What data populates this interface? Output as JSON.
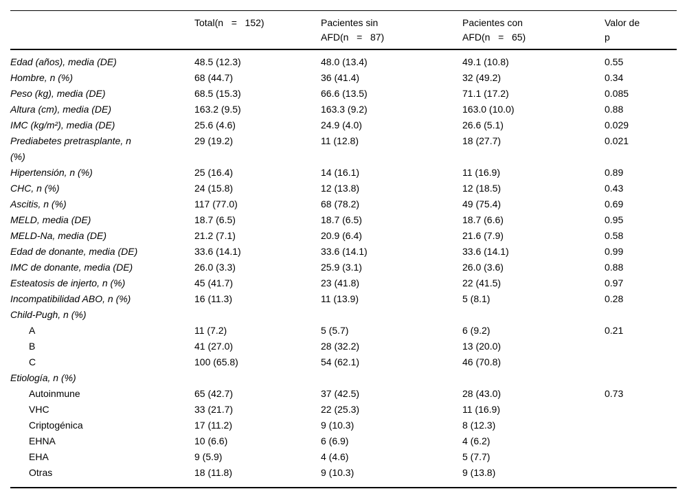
{
  "table": {
    "columns": [
      {
        "label": ""
      },
      {
        "label": "Total(n   =   152)"
      },
      {
        "label": "Pacientes sin\nAFD(n   =   87)"
      },
      {
        "label": "Pacientes con\nAFD(n   =   65)"
      },
      {
        "label": "Valor de\np"
      }
    ],
    "rows": [
      {
        "label": "Edad (años), media (DE)",
        "italic": true,
        "indent": false,
        "cells": [
          "48.5 (12.3)",
          "48.0 (13.4)",
          "49.1 (10.8)",
          "0.55"
        ]
      },
      {
        "label": "Hombre, n (%)",
        "italic": true,
        "indent": false,
        "cells": [
          "68 (44.7)",
          "36 (41.4)",
          "32 (49.2)",
          "0.34"
        ]
      },
      {
        "label": "Peso (kg), media (DE)",
        "italic": true,
        "indent": false,
        "cells": [
          "68.5 (15.3)",
          "66.6 (13.5)",
          "71.1 (17.2)",
          "0.085"
        ]
      },
      {
        "label": "Altura (cm), media (DE)",
        "italic": true,
        "indent": false,
        "cells": [
          "163.2 (9.5)",
          "163.3 (9.2)",
          "163.0 (10.0)",
          "0.88"
        ]
      },
      {
        "label": "IMC (kg/m²), media (DE)",
        "italic": true,
        "indent": false,
        "cells": [
          "25.6 (4.6)",
          "24.9 (4.0)",
          "26.6 (5.1)",
          "0.029"
        ]
      },
      {
        "label": "Prediabetes pretrasplante, n\n(%)",
        "italic": true,
        "indent": false,
        "cells": [
          "29 (19.2)",
          "11 (12.8)",
          "18 (27.7)",
          "0.021"
        ]
      },
      {
        "label": "Hipertensión, n (%)",
        "italic": true,
        "indent": false,
        "cells": [
          "25 (16.4)",
          "14 (16.1)",
          "11 (16.9)",
          "0.89"
        ]
      },
      {
        "label": "CHC, n (%)",
        "italic": true,
        "indent": false,
        "cells": [
          "24 (15.8)",
          "12 (13.8)",
          "12 (18.5)",
          "0.43"
        ]
      },
      {
        "label": "Ascitis, n (%)",
        "italic": true,
        "indent": false,
        "cells": [
          "117 (77.0)",
          "68 (78.2)",
          "49 (75.4)",
          "0.69"
        ]
      },
      {
        "label": "MELD, media (DE)",
        "italic": true,
        "indent": false,
        "cells": [
          "18.7 (6.5)",
          "18.7 (6.5)",
          "18.7 (6.6)",
          "0.95"
        ]
      },
      {
        "label": "MELD-Na, media (DE)",
        "italic": true,
        "indent": false,
        "cells": [
          "21.2 (7.1)",
          "20.9 (6.4)",
          "21.6 (7.9)",
          "0.58"
        ]
      },
      {
        "label": "Edad de donante, media (DE)",
        "italic": true,
        "indent": false,
        "cells": [
          "33.6 (14.1)",
          "33.6 (14.1)",
          "33.6 (14.1)",
          "0.99"
        ]
      },
      {
        "label": "IMC de donante, media (DE)",
        "italic": true,
        "indent": false,
        "cells": [
          "26.0 (3.3)",
          "25.9 (3.1)",
          "26.0 (3.6)",
          "0.88"
        ]
      },
      {
        "label": "Esteatosis de injerto, n (%)",
        "italic": true,
        "indent": false,
        "cells": [
          "45 (41.7)",
          "23 (41.8)",
          "22 (41.5)",
          "0.97"
        ]
      },
      {
        "label": "Incompatibilidad ABO, n (%)",
        "italic": true,
        "indent": false,
        "cells": [
          "16 (11.3)",
          "11 (13.9)",
          "5 (8.1)",
          "0.28"
        ]
      },
      {
        "label": "Child-Pugh, n (%)",
        "italic": true,
        "indent": false,
        "cells": [
          "",
          "",
          "",
          ""
        ]
      },
      {
        "label": "A",
        "italic": false,
        "indent": true,
        "cells": [
          "11 (7.2)",
          "5 (5.7)",
          "6 (9.2)",
          "0.21"
        ]
      },
      {
        "label": "B",
        "italic": false,
        "indent": true,
        "cells": [
          "41 (27.0)",
          "28 (32.2)",
          "13 (20.0)",
          ""
        ]
      },
      {
        "label": "C",
        "italic": false,
        "indent": true,
        "cells": [
          "100 (65.8)",
          "54 (62.1)",
          "46 (70.8)",
          ""
        ]
      },
      {
        "label": "Etiología, n (%)",
        "italic": true,
        "indent": false,
        "cells": [
          "",
          "",
          "",
          ""
        ]
      },
      {
        "label": "Autoinmune",
        "italic": false,
        "indent": true,
        "cells": [
          "65 (42.7)",
          "37 (42.5)",
          "28 (43.0)",
          "0.73"
        ]
      },
      {
        "label": "VHC",
        "italic": false,
        "indent": true,
        "cells": [
          "33 (21.7)",
          "22 (25.3)",
          "11 (16.9)",
          ""
        ]
      },
      {
        "label": "Criptogénica",
        "italic": false,
        "indent": true,
        "cells": [
          "17 (11.2)",
          "9 (10.3)",
          "8 (12.3)",
          ""
        ]
      },
      {
        "label": "EHNA",
        "italic": false,
        "indent": true,
        "cells": [
          "10 (6.6)",
          "6 (6.9)",
          "4 (6.2)",
          ""
        ]
      },
      {
        "label": "EHA",
        "italic": false,
        "indent": true,
        "cells": [
          "9 (5.9)",
          "4 (4.6)",
          "5 (7.7)",
          ""
        ]
      },
      {
        "label": "Otras",
        "italic": false,
        "indent": true,
        "cells": [
          "18 (11.8)",
          "9 (10.3)",
          "9 (13.8)",
          ""
        ]
      }
    ]
  }
}
